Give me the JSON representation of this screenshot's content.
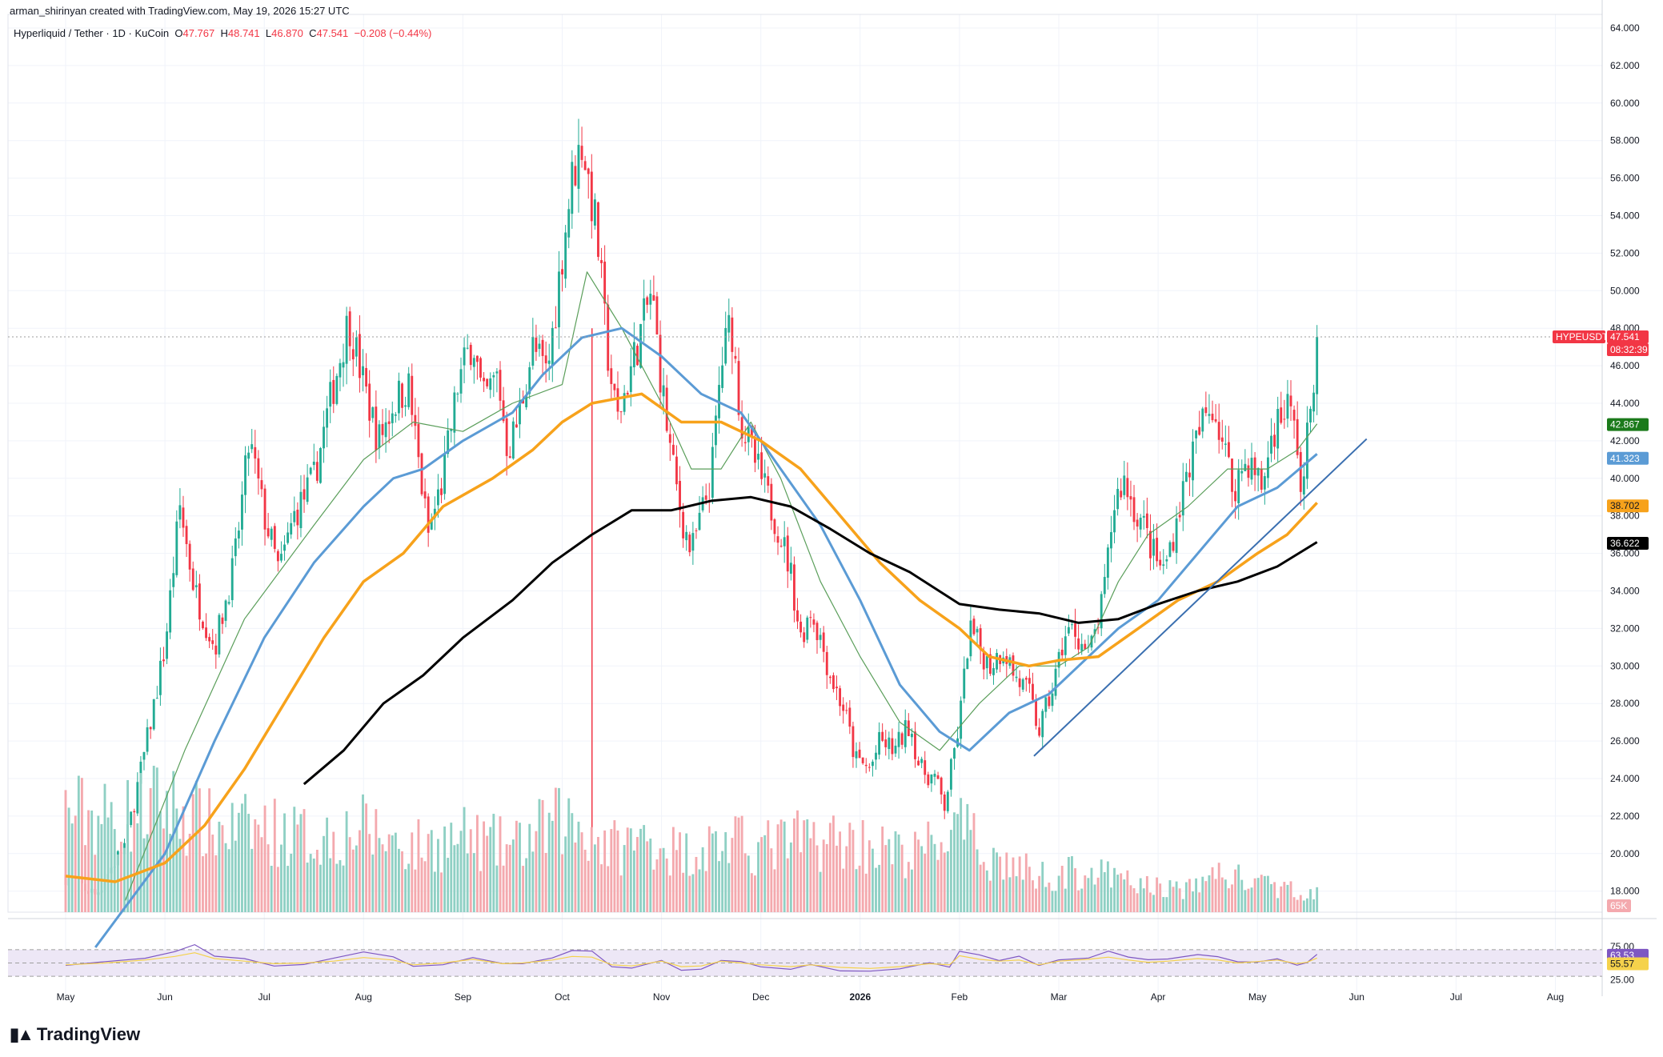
{
  "header": {
    "credit": "arman_shirinyan created with TradingView.com, May 19, 2026 15:27 UTC",
    "symbol_desc": "Hyperliquid / Tether · 1D · KuCoin",
    "open_label": "O",
    "open": "47.767",
    "high_label": "H",
    "high": "48.741",
    "low_label": "L",
    "low": "46.870",
    "close_label": "C",
    "close": "47.541",
    "change": "−0.208 (−0.44%)"
  },
  "branding": {
    "logo_text": "TradingView"
  },
  "colors": {
    "up": "#22ab94",
    "down": "#f23645",
    "up_vol": "#8fd0c4",
    "down_vol": "#f4a9ae",
    "ma_fast": "#5a9e5a",
    "ma_blue": "#5b9bd5",
    "ma_orange": "#f7a21b",
    "ma_black": "#000000",
    "trendline": "#3a6fb0",
    "rsi_line": "#7e57c2",
    "rsi_ma": "#f5d24b",
    "rsi_band": "#ede7f6"
  },
  "chart_data": {
    "type": "candlestick",
    "title": "Hyperliquid / Tether · 1D · KuCoin",
    "y_axis": {
      "min": 17,
      "max": 64,
      "side": "right",
      "ticks": [
        "64.000",
        "62.000",
        "60.000",
        "58.000",
        "56.000",
        "54.000",
        "52.000",
        "50.000",
        "48.000",
        "46.000",
        "44.000",
        "42.000",
        "40.000",
        "38.000",
        "36.000",
        "34.000",
        "32.000",
        "30.000",
        "28.000",
        "26.000",
        "24.000",
        "22.000",
        "20.000",
        "18.000"
      ]
    },
    "x_axis": {
      "ticks": [
        "May",
        "Jun",
        "Jul",
        "Aug",
        "Sep",
        "Oct",
        "Nov",
        "Dec",
        "2026",
        "Feb",
        "Mar",
        "Apr",
        "May",
        "Jun",
        "Jul",
        "Aug"
      ],
      "tick_month_index": [
        0,
        1,
        2,
        3,
        4,
        5,
        6,
        7,
        8,
        9,
        10,
        11,
        12,
        13,
        14,
        15
      ],
      "last_candle_month_index": 12.6
    },
    "price_path": [
      [
        0,
        18.8
      ],
      [
        0.3,
        17.8
      ],
      [
        0.6,
        20.5
      ],
      [
        0.8,
        25.5
      ],
      [
        1.0,
        31
      ],
      [
        1.15,
        38.5
      ],
      [
        1.3,
        34
      ],
      [
        1.5,
        31
      ],
      [
        1.7,
        35.5
      ],
      [
        1.85,
        42
      ],
      [
        2.0,
        38
      ],
      [
        2.15,
        35
      ],
      [
        2.3,
        38
      ],
      [
        2.5,
        40
      ],
      [
        2.7,
        45
      ],
      [
        2.85,
        48.5
      ],
      [
        3.0,
        45
      ],
      [
        3.15,
        42
      ],
      [
        3.3,
        44
      ],
      [
        3.45,
        45
      ],
      [
        3.55,
        41
      ],
      [
        3.65,
        37
      ],
      [
        3.8,
        40
      ],
      [
        3.95,
        45
      ],
      [
        4.1,
        47.5
      ],
      [
        4.2,
        44
      ],
      [
        4.35,
        45.5
      ],
      [
        4.45,
        41.5
      ],
      [
        4.55,
        43
      ],
      [
        4.7,
        47
      ],
      [
        4.85,
        45.5
      ],
      [
        5.0,
        52
      ],
      [
        5.1,
        56
      ],
      [
        5.2,
        58
      ],
      [
        5.35,
        53
      ],
      [
        5.45,
        47
      ],
      [
        5.55,
        43
      ],
      [
        5.75,
        47
      ],
      [
        5.9,
        50
      ],
      [
        6.0,
        45
      ],
      [
        6.1,
        41
      ],
      [
        6.2,
        38
      ],
      [
        6.3,
        36
      ],
      [
        6.4,
        38
      ],
      [
        6.5,
        40
      ],
      [
        6.6,
        46
      ],
      [
        6.7,
        48.5
      ],
      [
        6.8,
        43
      ],
      [
        6.9,
        41.5
      ],
      [
        7.0,
        40
      ],
      [
        7.1,
        38.5
      ],
      [
        7.2,
        37
      ],
      [
        7.3,
        35
      ],
      [
        7.4,
        31.5
      ],
      [
        7.5,
        33
      ],
      [
        7.6,
        31.5
      ],
      [
        7.7,
        29.5
      ],
      [
        7.85,
        27.5
      ],
      [
        7.95,
        25
      ],
      [
        8.1,
        24.5
      ],
      [
        8.2,
        26
      ],
      [
        8.35,
        25.5
      ],
      [
        8.5,
        27
      ],
      [
        8.6,
        24.5
      ],
      [
        8.75,
        24
      ],
      [
        8.85,
        22.5
      ],
      [
        9.0,
        27
      ],
      [
        9.1,
        32
      ],
      [
        9.2,
        31
      ],
      [
        9.3,
        30
      ],
      [
        9.45,
        31
      ],
      [
        9.55,
        29.5
      ],
      [
        9.7,
        28.5
      ],
      [
        9.8,
        26.5
      ],
      [
        9.95,
        29
      ],
      [
        10.05,
        31.5
      ],
      [
        10.15,
        32
      ],
      [
        10.3,
        30.5
      ],
      [
        10.45,
        33.5
      ],
      [
        10.55,
        38.5
      ],
      [
        10.65,
        40
      ],
      [
        10.75,
        38.5
      ],
      [
        10.85,
        37.5
      ],
      [
        10.95,
        36
      ],
      [
        11.05,
        35
      ],
      [
        11.15,
        37
      ],
      [
        11.3,
        40.5
      ],
      [
        11.45,
        43
      ],
      [
        11.55,
        44
      ],
      [
        11.65,
        42
      ],
      [
        11.75,
        39.5
      ],
      [
        11.9,
        41
      ],
      [
        12.05,
        39.5
      ],
      [
        12.15,
        42.5
      ],
      [
        12.3,
        44
      ],
      [
        12.4,
        42
      ],
      [
        12.45,
        38.5
      ],
      [
        12.5,
        42
      ],
      [
        12.6,
        47.5
      ]
    ],
    "last_close": 47.541,
    "moving_averages": [
      {
        "key": "ma_fast",
        "last": 42.867,
        "line": [
          [
            0.6,
            17.5
          ],
          [
            1.2,
            25.5
          ],
          [
            1.8,
            32.5
          ],
          [
            2.5,
            37.5
          ],
          [
            3.0,
            41
          ],
          [
            3.5,
            43
          ],
          [
            4.0,
            42.5
          ],
          [
            4.5,
            44
          ],
          [
            5.0,
            45
          ],
          [
            5.25,
            51
          ],
          [
            5.6,
            48
          ],
          [
            6.0,
            44
          ],
          [
            6.3,
            40.5
          ],
          [
            6.6,
            40.5
          ],
          [
            6.9,
            43
          ],
          [
            7.2,
            40
          ],
          [
            7.6,
            34.5
          ],
          [
            8.0,
            30.5
          ],
          [
            8.4,
            27
          ],
          [
            8.8,
            25.5
          ],
          [
            9.2,
            28
          ],
          [
            9.6,
            30
          ],
          [
            10.0,
            30
          ],
          [
            10.3,
            31
          ],
          [
            10.6,
            34.5
          ],
          [
            10.9,
            37
          ],
          [
            11.3,
            38.5
          ],
          [
            11.7,
            40.5
          ],
          [
            12.1,
            40.5
          ],
          [
            12.4,
            41.5
          ],
          [
            12.6,
            42.9
          ]
        ]
      },
      {
        "key": "ma_blue",
        "last": 41.323,
        "line": [
          [
            0.3,
            15
          ],
          [
            1.0,
            20
          ],
          [
            1.5,
            26
          ],
          [
            2.0,
            31.5
          ],
          [
            2.5,
            35.5
          ],
          [
            3.0,
            38.5
          ],
          [
            3.3,
            40
          ],
          [
            3.6,
            40.5
          ],
          [
            4.0,
            42
          ],
          [
            4.5,
            43.5
          ],
          [
            4.8,
            45.5
          ],
          [
            5.2,
            47.5
          ],
          [
            5.6,
            48
          ],
          [
            6.0,
            46.5
          ],
          [
            6.4,
            44.5
          ],
          [
            6.8,
            43.5
          ],
          [
            7.2,
            40.5
          ],
          [
            7.6,
            37.5
          ],
          [
            8.0,
            33.5
          ],
          [
            8.4,
            29
          ],
          [
            8.8,
            26.5
          ],
          [
            9.1,
            25.5
          ],
          [
            9.5,
            27.5
          ],
          [
            9.9,
            28.5
          ],
          [
            10.2,
            30
          ],
          [
            10.6,
            32
          ],
          [
            11.0,
            33.5
          ],
          [
            11.4,
            36
          ],
          [
            11.8,
            38.5
          ],
          [
            12.2,
            39.5
          ],
          [
            12.6,
            41.3
          ]
        ]
      },
      {
        "key": "ma_orange",
        "last": 38.702,
        "line": [
          [
            0.0,
            18.8
          ],
          [
            0.5,
            18.5
          ],
          [
            1.0,
            19.5
          ],
          [
            1.4,
            21.5
          ],
          [
            1.8,
            24.5
          ],
          [
            2.2,
            28
          ],
          [
            2.6,
            31.5
          ],
          [
            3.0,
            34.5
          ],
          [
            3.4,
            36
          ],
          [
            3.8,
            38.5
          ],
          [
            4.3,
            40
          ],
          [
            4.7,
            41.5
          ],
          [
            5.0,
            43
          ],
          [
            5.3,
            44
          ],
          [
            5.8,
            44.5
          ],
          [
            6.2,
            43
          ],
          [
            6.6,
            43
          ],
          [
            7.0,
            42
          ],
          [
            7.4,
            40.5
          ],
          [
            7.8,
            38
          ],
          [
            8.2,
            35.5
          ],
          [
            8.6,
            33.5
          ],
          [
            9.0,
            32
          ],
          [
            9.3,
            30.5
          ],
          [
            9.7,
            30
          ],
          [
            10.0,
            30.3
          ],
          [
            10.4,
            30.5
          ],
          [
            10.8,
            32
          ],
          [
            11.2,
            33.5
          ],
          [
            11.6,
            34.5
          ],
          [
            12.0,
            36
          ],
          [
            12.3,
            37
          ],
          [
            12.6,
            38.7
          ]
        ]
      },
      {
        "key": "ma_black",
        "last": 36.622,
        "line": [
          [
            2.4,
            23.7
          ],
          [
            2.8,
            25.5
          ],
          [
            3.2,
            28
          ],
          [
            3.6,
            29.5
          ],
          [
            4.0,
            31.5
          ],
          [
            4.5,
            33.5
          ],
          [
            4.9,
            35.5
          ],
          [
            5.3,
            37
          ],
          [
            5.7,
            38.3
          ],
          [
            6.1,
            38.3
          ],
          [
            6.5,
            38.8
          ],
          [
            6.9,
            39
          ],
          [
            7.3,
            38.5
          ],
          [
            7.7,
            37.3
          ],
          [
            8.1,
            36
          ],
          [
            8.5,
            35
          ],
          [
            9.0,
            33.3
          ],
          [
            9.4,
            33
          ],
          [
            9.8,
            32.8
          ],
          [
            10.2,
            32.3
          ],
          [
            10.6,
            32.5
          ],
          [
            11.0,
            33.3
          ],
          [
            11.4,
            34
          ],
          [
            11.8,
            34.5
          ],
          [
            12.2,
            35.3
          ],
          [
            12.6,
            36.6
          ]
        ]
      }
    ],
    "trendline": [
      [
        9.75,
        25.2
      ],
      [
        13.1,
        42.1
      ]
    ],
    "volume": {
      "last_label": "65K",
      "profile": [
        [
          0,
          0.55
        ],
        [
          0.5,
          0.5
        ],
        [
          1.0,
          0.6
        ],
        [
          1.5,
          0.45
        ],
        [
          2.0,
          0.45
        ],
        [
          2.5,
          0.4
        ],
        [
          3.0,
          0.45
        ],
        [
          3.5,
          0.35
        ],
        [
          4.0,
          0.4
        ],
        [
          4.5,
          0.35
        ],
        [
          5.0,
          0.5
        ],
        [
          5.25,
          0.45
        ],
        [
          5.5,
          0.35
        ],
        [
          5.9,
          0.4
        ],
        [
          6.2,
          0.32
        ],
        [
          6.6,
          0.38
        ],
        [
          7.0,
          0.35
        ],
        [
          7.5,
          0.4
        ],
        [
          8.0,
          0.38
        ],
        [
          8.5,
          0.3
        ],
        [
          9.0,
          0.45
        ],
        [
          9.3,
          0.3
        ],
        [
          9.8,
          0.2
        ],
        [
          10.3,
          0.22
        ],
        [
          10.8,
          0.15
        ],
        [
          11.3,
          0.12
        ],
        [
          11.6,
          0.22
        ],
        [
          12.0,
          0.15
        ],
        [
          12.6,
          0.1
        ]
      ]
    },
    "rsi": {
      "y_ticks": [
        "75.00",
        "25.00"
      ],
      "band": [
        30,
        70
      ],
      "rsi_last": 63.53,
      "rsi_ma_last": 55.57,
      "path": [
        [
          0,
          45
        ],
        [
          0.4,
          50
        ],
        [
          0.8,
          58
        ],
        [
          1.1,
          68
        ],
        [
          1.3,
          78
        ],
        [
          1.5,
          62
        ],
        [
          1.8,
          55
        ],
        [
          2.1,
          48
        ],
        [
          2.4,
          50
        ],
        [
          2.7,
          55
        ],
        [
          3.0,
          65
        ],
        [
          3.3,
          58
        ],
        [
          3.5,
          45
        ],
        [
          3.8,
          50
        ],
        [
          4.1,
          60
        ],
        [
          4.4,
          48
        ],
        [
          4.6,
          50
        ],
        [
          4.9,
          58
        ],
        [
          5.1,
          68
        ],
        [
          5.3,
          66
        ],
        [
          5.5,
          45
        ],
        [
          5.7,
          42
        ],
        [
          6.0,
          55
        ],
        [
          6.2,
          40
        ],
        [
          6.4,
          42
        ],
        [
          6.6,
          55
        ],
        [
          6.8,
          50
        ],
        [
          7.0,
          45
        ],
        [
          7.3,
          40
        ],
        [
          7.5,
          45
        ],
        [
          7.8,
          38
        ],
        [
          8.1,
          35
        ],
        [
          8.4,
          40
        ],
        [
          8.7,
          48
        ],
        [
          8.9,
          45
        ],
        [
          9.0,
          70
        ],
        [
          9.2,
          60
        ],
        [
          9.4,
          55
        ],
        [
          9.6,
          58
        ],
        [
          9.8,
          45
        ],
        [
          10.0,
          55
        ],
        [
          10.3,
          60
        ],
        [
          10.5,
          66
        ],
        [
          10.7,
          58
        ],
        [
          10.9,
          52
        ],
        [
          11.1,
          55
        ],
        [
          11.4,
          62
        ],
        [
          11.6,
          58
        ],
        [
          11.8,
          50
        ],
        [
          12.0,
          54
        ],
        [
          12.2,
          58
        ],
        [
          12.4,
          48
        ],
        [
          12.5,
          52
        ],
        [
          12.6,
          63.5
        ]
      ]
    },
    "price_labels": [
      {
        "text": "HYPEUSDT",
        "key": "down"
      },
      {
        "text": "47.541",
        "key": "down"
      },
      {
        "text": "08:32:39",
        "key": "down"
      },
      {
        "text": "42.867",
        "key": "ma_fast_label"
      },
      {
        "text": "41.323",
        "key": "ma_blue"
      },
      {
        "text": "38.702",
        "key": "ma_orange"
      },
      {
        "text": "36.622",
        "key": "ma_black"
      }
    ]
  }
}
